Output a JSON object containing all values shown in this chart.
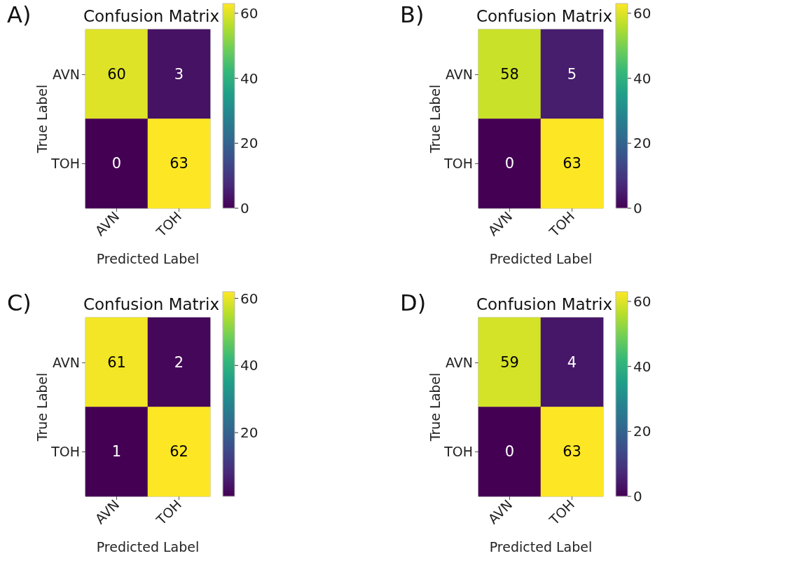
{
  "chart_data": [
    {
      "type": "heatmap",
      "title": "Confusion Matrix",
      "xlabel": "Predicted Label",
      "ylabel": "True Label",
      "annotations": [
        "A)"
      ],
      "categories": [
        "AVN",
        "TOH"
      ],
      "y_categories": [
        "AVN",
        "TOH"
      ],
      "cells": [
        [
          60,
          3
        ],
        [
          0,
          63
        ]
      ],
      "clim": [
        0,
        63
      ],
      "cticks": [
        0,
        20,
        40,
        60
      ],
      "data_labels": true
    },
    {
      "type": "heatmap",
      "title": "Confusion Matrix",
      "xlabel": "Predicted Label",
      "ylabel": "True Label",
      "annotations": [
        "B)"
      ],
      "categories": [
        "AVN",
        "TOH"
      ],
      "y_categories": [
        "AVN",
        "TOH"
      ],
      "cells": [
        [
          58,
          5
        ],
        [
          0,
          63
        ]
      ],
      "clim": [
        0,
        63
      ],
      "cticks": [
        0,
        20,
        40,
        60
      ],
      "data_labels": true
    },
    {
      "type": "heatmap",
      "title": "Confusion Matrix",
      "xlabel": "Predicted Label",
      "ylabel": "True Label",
      "annotations": [
        "C)"
      ],
      "categories": [
        "AVN",
        "TOH"
      ],
      "y_categories": [
        "AVN",
        "TOH"
      ],
      "cells": [
        [
          61,
          2
        ],
        [
          1,
          62
        ]
      ],
      "clim": [
        1,
        62
      ],
      "cticks": [
        20,
        40,
        60
      ],
      "data_labels": true
    },
    {
      "type": "heatmap",
      "title": "Confusion Matrix",
      "xlabel": "Predicted Label",
      "ylabel": "True Label",
      "annotations": [
        "D)"
      ],
      "categories": [
        "AVN",
        "TOH"
      ],
      "y_categories": [
        "AVN",
        "TOH"
      ],
      "cells": [
        [
          59,
          4
        ],
        [
          0,
          63
        ]
      ],
      "clim": [
        0,
        63
      ],
      "cticks": [
        0,
        20,
        40,
        60
      ],
      "data_labels": true
    }
  ]
}
